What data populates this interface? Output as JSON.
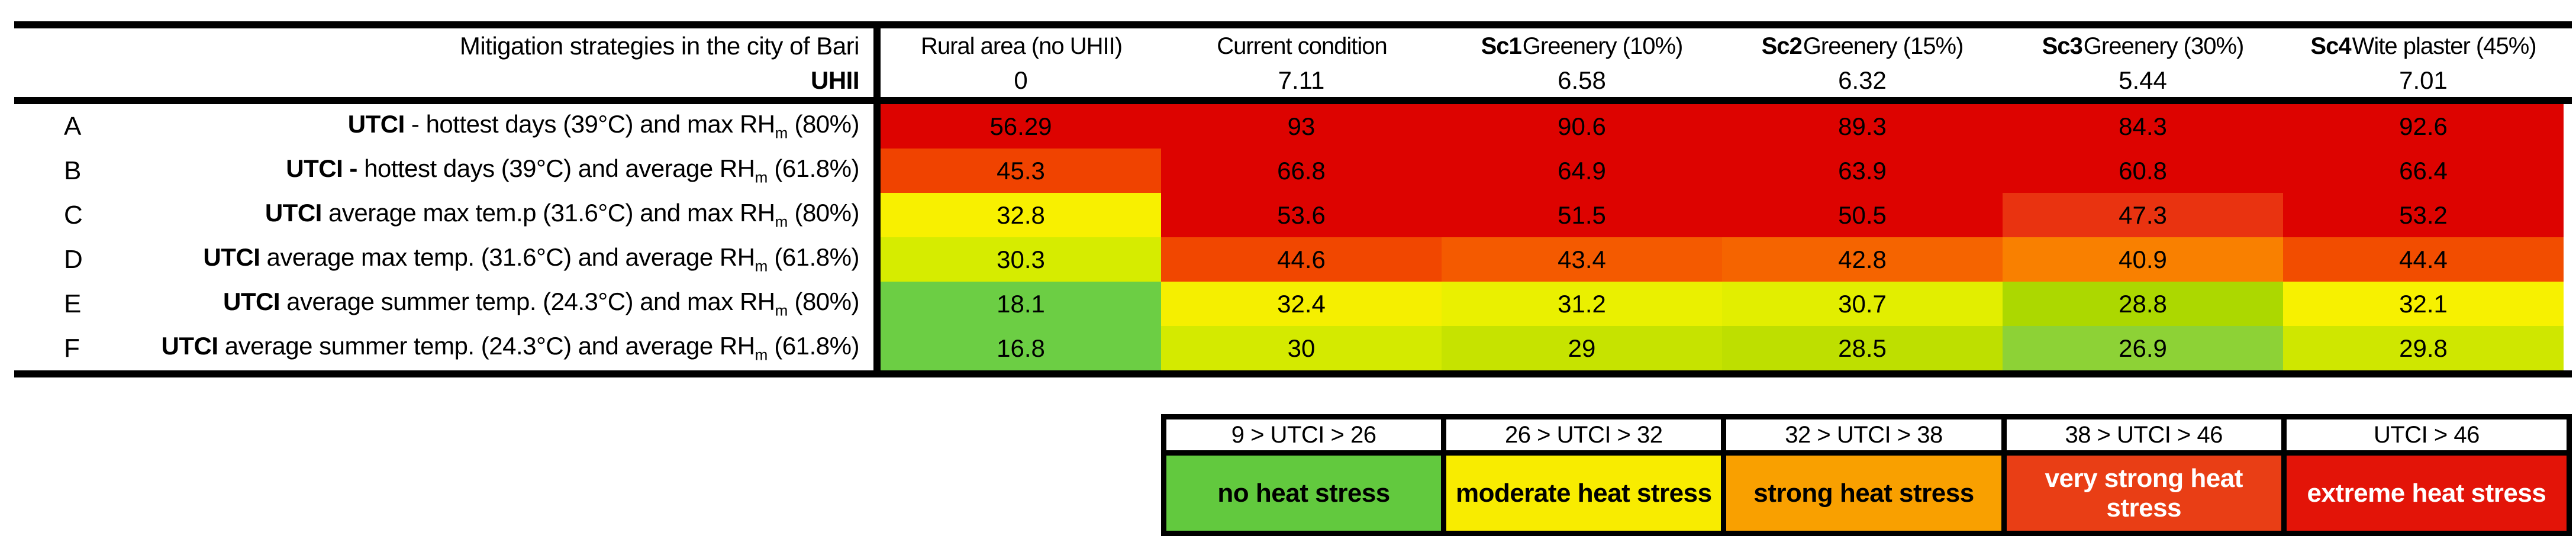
{
  "page": {
    "background": "#FFFFFF"
  },
  "table": {
    "title": "Mitigation strategies in the city of Bari",
    "uhii_label": "UHII",
    "columns": [
      {
        "bold": "",
        "name": "Rural area (no UHII)",
        "uhii": "0"
      },
      {
        "bold": "",
        "name": "Current condition",
        "uhii": "7.11"
      },
      {
        "bold": "Sc1",
        "name": " Greenery (10%)",
        "uhii": "6.58"
      },
      {
        "bold": "Sc2",
        "name": " Greenery (15%)",
        "uhii": "6.32"
      },
      {
        "bold": "Sc3",
        "name": " Greenery (30%)",
        "uhii": "5.44"
      },
      {
        "bold": "Sc4",
        "name": " Wite plaster (45%)",
        "uhii": "7.01"
      }
    ],
    "rows": [
      {
        "letter": "A",
        "label": {
          "bold": "UTCI",
          "mid": " - hottest days (39°C) and max RH",
          "sub": "m",
          "tail": " (80%)"
        },
        "cells": [
          {
            "value": "56.29",
            "bg": "#DD0300"
          },
          {
            "value": "93",
            "bg": "#DD0300"
          },
          {
            "value": "90.6",
            "bg": "#DD0300"
          },
          {
            "value": "89.3",
            "bg": "#DD0300"
          },
          {
            "value": "84.3",
            "bg": "#DD0300"
          },
          {
            "value": "92.6",
            "bg": "#DD0300"
          }
        ]
      },
      {
        "letter": "B",
        "label": {
          "bold": "UTCI -",
          "mid": " hottest days (39°C) and average RH",
          "sub": "m",
          "tail": " (61.8%)"
        },
        "cells": [
          {
            "value": "45.3",
            "bg": "#F04300"
          },
          {
            "value": "66.8",
            "bg": "#DD0300"
          },
          {
            "value": "64.9",
            "bg": "#DD0300"
          },
          {
            "value": "63.9",
            "bg": "#DD0300"
          },
          {
            "value": "60.8",
            "bg": "#DD0300"
          },
          {
            "value": "66.4",
            "bg": "#DD0300"
          }
        ]
      },
      {
        "letter": "C",
        "label": {
          "bold": "UTCI",
          "mid": " average max tem.p (31.6°C) and max RH",
          "sub": "m",
          "tail": " (80%)"
        },
        "cells": [
          {
            "value": "32.8",
            "bg": "#F8F000"
          },
          {
            "value": "53.6",
            "bg": "#DD0300"
          },
          {
            "value": "51.5",
            "bg": "#DD0300"
          },
          {
            "value": "50.5",
            "bg": "#DD0300"
          },
          {
            "value": "47.3",
            "bg": "#E93310"
          },
          {
            "value": "53.2",
            "bg": "#DD0300"
          }
        ]
      },
      {
        "letter": "D",
        "label": {
          "bold": "UTCI",
          "mid": " average max temp. (31.6°C) and average RH",
          "sub": "m",
          "tail": " (61.8%)"
        },
        "cells": [
          {
            "value": "30.3",
            "bg": "#D6EC00"
          },
          {
            "value": "44.6",
            "bg": "#F14700"
          },
          {
            "value": "43.4",
            "bg": "#F45A00"
          },
          {
            "value": "42.8",
            "bg": "#F56400"
          },
          {
            "value": "40.9",
            "bg": "#F98000"
          },
          {
            "value": "44.4",
            "bg": "#F24D00"
          }
        ]
      },
      {
        "letter": "E",
        "label": {
          "bold": "UTCI",
          "mid": " average summer temp. (24.3°C) and max RH",
          "sub": "m",
          "tail": " (80%)"
        },
        "cells": [
          {
            "value": "18.1",
            "bg": "#6CCE44"
          },
          {
            "value": "32.4",
            "bg": "#F5EF00"
          },
          {
            "value": "31.2",
            "bg": "#EAF000"
          },
          {
            "value": "30.7",
            "bg": "#E2EE00"
          },
          {
            "value": "28.8",
            "bg": "#ACD800"
          },
          {
            "value": "32.1",
            "bg": "#F7F100"
          }
        ]
      },
      {
        "letter": "F",
        "label": {
          "bold": "UTCI",
          "mid": " average summer temp. (24.3°C) and average RH",
          "sub": "m",
          "tail": " (61.8%)"
        },
        "cells": [
          {
            "value": "16.8",
            "bg": "#6CCE44"
          },
          {
            "value": "30",
            "bg": "#D4EA00"
          },
          {
            "value": "29",
            "bg": "#C6E300"
          },
          {
            "value": "28.5",
            "bg": "#BEDF00"
          },
          {
            "value": "26.9",
            "bg": "#8DD236"
          },
          {
            "value": "29.8",
            "bg": "#CFE700"
          }
        ]
      }
    ]
  },
  "legend": {
    "items": [
      {
        "range": "9 > UTCI > 26",
        "label": "no heat stress",
        "bg": "#62C93E",
        "fg": "#000000"
      },
      {
        "range": "26 > UTCI > 32",
        "label": "moderate heat stress",
        "bg": "#F8EC00",
        "fg": "#000000"
      },
      {
        "range": "32 > UTCI > 38",
        "label": "strong heat stress",
        "bg": "#F9A000",
        "fg": "#000000"
      },
      {
        "range": "38 > UTCI > 46",
        "label": "very strong heat stress",
        "bg": "#E93E15",
        "fg": "#FFFFFF"
      },
      {
        "range": "UTCI > 46",
        "label": "extreme heat stress",
        "bg": "#E31408",
        "fg": "#FFFFFF"
      }
    ]
  },
  "chart_data": {
    "type": "heatmap",
    "title": "Mitigation strategies in the city of Bari",
    "columns": [
      "Rural area (no UHII)",
      "Current condition",
      "Sc1 Greenery (10%)",
      "Sc2 Greenery (15%)",
      "Sc3 Greenery (30%)",
      "Sc4 Wite plaster (45%)"
    ],
    "uhii_values": [
      0,
      7.11,
      6.58,
      6.32,
      5.44,
      7.01
    ],
    "rows": [
      {
        "id": "A",
        "label": "UTCI - hottest days (39°C) and max RHm (80%)",
        "values": [
          56.29,
          93,
          90.6,
          89.3,
          84.3,
          92.6
        ]
      },
      {
        "id": "B",
        "label": "UTCI - hottest days (39°C) and average RHm (61.8%)",
        "values": [
          45.3,
          66.8,
          64.9,
          63.9,
          60.8,
          66.4
        ]
      },
      {
        "id": "C",
        "label": "UTCI average max tem.p (31.6°C) and max RHm (80%)",
        "values": [
          32.8,
          53.6,
          51.5,
          50.5,
          47.3,
          53.2
        ]
      },
      {
        "id": "D",
        "label": "UTCI average max temp. (31.6°C) and average RHm (61.8%)",
        "values": [
          30.3,
          44.6,
          43.4,
          42.8,
          40.9,
          44.4
        ]
      },
      {
        "id": "E",
        "label": "UTCI average summer temp. (24.3°C) and max RHm (80%)",
        "values": [
          18.1,
          32.4,
          31.2,
          30.7,
          28.8,
          32.1
        ]
      },
      {
        "id": "F",
        "label": "UTCI average summer temp. (24.3°C) and average RHm (61.8%)",
        "values": [
          16.8,
          30,
          29,
          28.5,
          26.9,
          29.8
        ]
      }
    ],
    "legend": [
      {
        "range": "9 > UTCI > 26",
        "label": "no heat stress",
        "color": "#62C93E"
      },
      {
        "range": "26 > UTCI > 32",
        "label": "moderate heat stress",
        "color": "#F8EC00"
      },
      {
        "range": "32 > UTCI > 38",
        "label": "strong heat stress",
        "color": "#F9A000"
      },
      {
        "range": "38 > UTCI > 46",
        "label": "very strong heat stress",
        "color": "#E93E15"
      },
      {
        "range": "UTCI > 46",
        "label": "extreme heat stress",
        "color": "#E31408"
      }
    ],
    "layout": {
      "grid": false,
      "legend_position": "bottom-right"
    }
  }
}
